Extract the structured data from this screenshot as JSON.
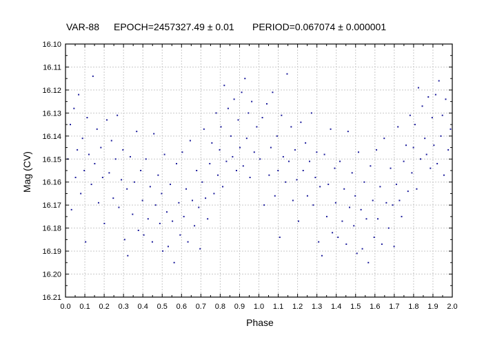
{
  "chart_data": {
    "type": "scatter",
    "title_parts": {
      "star": "VAR-88",
      "epoch": "EPOCH=2457327.49 ± 0.01",
      "period": "PERIOD=0.067074 ± 0.000001"
    },
    "xlabel": "Phase",
    "ylabel": "Mag (CV)",
    "xlim": [
      0.0,
      2.0
    ],
    "ylim": [
      16.21,
      16.1
    ],
    "y_inverted": true,
    "grid": true,
    "x_ticks": [
      "0.0",
      "0.1",
      "0.2",
      "0.3",
      "0.4",
      "0.5",
      "0.6",
      "0.7",
      "0.8",
      "0.9",
      "1.0",
      "1.1",
      "1.2",
      "1.3",
      "1.4",
      "1.5",
      "1.6",
      "1.7",
      "1.8",
      "1.9",
      "2.0"
    ],
    "y_ticks": [
      "16.10",
      "16.11",
      "16.12",
      "16.13",
      "16.14",
      "16.15",
      "16.16",
      "16.17",
      "16.18",
      "16.19",
      "16.20",
      "16.21"
    ],
    "point_color": "#1a1a9a",
    "series": [
      {
        "name": "",
        "points": [
          [
            0.012,
            16.15
          ],
          [
            0.025,
            16.135
          ],
          [
            0.031,
            16.172
          ],
          [
            0.044,
            16.128
          ],
          [
            0.052,
            16.158
          ],
          [
            0.061,
            16.146
          ],
          [
            0.068,
            16.122
          ],
          [
            0.079,
            16.165
          ],
          [
            0.088,
            16.141
          ],
          [
            0.097,
            16.155
          ],
          [
            0.104,
            16.186
          ],
          [
            0.112,
            16.132
          ],
          [
            0.121,
            16.148
          ],
          [
            0.134,
            16.161
          ],
          [
            0.142,
            16.114
          ],
          [
            0.151,
            16.152
          ],
          [
            0.163,
            16.137
          ],
          [
            0.171,
            16.169
          ],
          [
            0.183,
            16.145
          ],
          [
            0.192,
            16.158
          ],
          [
            0.201,
            16.178
          ],
          [
            0.214,
            16.133
          ],
          [
            0.226,
            16.156
          ],
          [
            0.238,
            16.142
          ],
          [
            0.247,
            16.167
          ],
          [
            0.259,
            16.15
          ],
          [
            0.268,
            16.131
          ],
          [
            0.276,
            16.171
          ],
          [
            0.289,
            16.159
          ],
          [
            0.297,
            16.146
          ],
          [
            0.306,
            16.185
          ],
          [
            0.318,
            16.163
          ],
          [
            0.322,
            16.192
          ],
          [
            0.335,
            16.149
          ],
          [
            0.347,
            16.174
          ],
          [
            0.356,
            16.16
          ],
          [
            0.368,
            16.138
          ],
          [
            0.377,
            16.181
          ],
          [
            0.389,
            16.155
          ],
          [
            0.398,
            16.168
          ],
          [
            0.405,
            16.183
          ],
          [
            0.416,
            16.15
          ],
          [
            0.427,
            16.176
          ],
          [
            0.438,
            16.162
          ],
          [
            0.449,
            16.186
          ],
          [
            0.457,
            16.139
          ],
          [
            0.466,
            16.17
          ],
          [
            0.479,
            16.157
          ],
          [
            0.488,
            16.178
          ],
          [
            0.497,
            16.165
          ],
          [
            0.503,
            16.19
          ],
          [
            0.512,
            16.148
          ],
          [
            0.524,
            16.173
          ],
          [
            0.531,
            16.188
          ],
          [
            0.542,
            16.161
          ],
          [
            0.553,
            16.177
          ],
          [
            0.562,
            16.195
          ],
          [
            0.574,
            16.152
          ],
          [
            0.586,
            16.169
          ],
          [
            0.593,
            16.183
          ],
          [
            0.604,
            16.147
          ],
          [
            0.612,
            16.175
          ],
          [
            0.624,
            16.163
          ],
          [
            0.633,
            16.186
          ],
          [
            0.645,
            16.142
          ],
          [
            0.656,
            16.168
          ],
          [
            0.667,
            16.179
          ],
          [
            0.678,
            16.155
          ],
          [
            0.689,
            16.171
          ],
          [
            0.696,
            16.189
          ],
          [
            0.707,
            16.16
          ],
          [
            0.716,
            16.137
          ],
          [
            0.724,
            16.167
          ],
          [
            0.735,
            16.176
          ],
          [
            0.746,
            16.152
          ],
          [
            0.757,
            16.143
          ],
          [
            0.768,
            16.165
          ],
          [
            0.779,
            16.13
          ],
          [
            0.788,
            16.157
          ],
          [
            0.797,
            16.146
          ],
          [
            0.804,
            16.136
          ],
          [
            0.813,
            16.162
          ],
          [
            0.821,
            16.118
          ],
          [
            0.832,
            16.151
          ],
          [
            0.841,
            16.128
          ],
          [
            0.855,
            16.14
          ],
          [
            0.864,
            16.149
          ],
          [
            0.872,
            16.124
          ],
          [
            0.884,
            16.155
          ],
          [
            0.893,
            16.133
          ],
          [
            0.902,
            16.145
          ],
          [
            0.911,
            16.121
          ],
          [
            0.919,
            16.153
          ],
          [
            0.928,
            16.115
          ],
          [
            0.937,
            16.141
          ],
          [
            0.946,
            16.13
          ],
          [
            0.954,
            16.158
          ],
          [
            0.963,
            16.125
          ],
          [
            0.976,
            16.147
          ],
          [
            0.989,
            16.136
          ],
          [
            1.006,
            16.15
          ],
          [
            1.018,
            16.132
          ],
          [
            1.027,
            16.17
          ],
          [
            1.041,
            16.126
          ],
          [
            1.053,
            16.157
          ],
          [
            1.062,
            16.145
          ],
          [
            1.071,
            16.121
          ],
          [
            1.083,
            16.166
          ],
          [
            1.094,
            16.14
          ],
          [
            1.099,
            16.155
          ],
          [
            1.108,
            16.184
          ],
          [
            1.117,
            16.131
          ],
          [
            1.126,
            16.149
          ],
          [
            1.138,
            16.16
          ],
          [
            1.146,
            16.113
          ],
          [
            1.155,
            16.151
          ],
          [
            1.167,
            16.136
          ],
          [
            1.176,
            16.168
          ],
          [
            1.187,
            16.146
          ],
          [
            1.196,
            16.159
          ],
          [
            1.205,
            16.177
          ],
          [
            1.217,
            16.134
          ],
          [
            1.229,
            16.155
          ],
          [
            1.241,
            16.143
          ],
          [
            1.251,
            16.166
          ],
          [
            1.262,
            16.151
          ],
          [
            1.272,
            16.13
          ],
          [
            1.281,
            16.17
          ],
          [
            1.292,
            16.158
          ],
          [
            1.299,
            16.147
          ],
          [
            1.309,
            16.186
          ],
          [
            1.316,
            16.162
          ],
          [
            1.326,
            16.192
          ],
          [
            1.339,
            16.148
          ],
          [
            1.351,
            16.175
          ],
          [
            1.359,
            16.161
          ],
          [
            1.371,
            16.137
          ],
          [
            1.38,
            16.182
          ],
          [
            1.392,
            16.154
          ],
          [
            1.397,
            16.169
          ],
          [
            1.409,
            16.184
          ],
          [
            1.419,
            16.151
          ],
          [
            1.431,
            16.177
          ],
          [
            1.441,
            16.163
          ],
          [
            1.452,
            16.187
          ],
          [
            1.461,
            16.138
          ],
          [
            1.469,
            16.171
          ],
          [
            1.482,
            16.156
          ],
          [
            1.491,
            16.179
          ],
          [
            1.498,
            16.166
          ],
          [
            1.507,
            16.191
          ],
          [
            1.515,
            16.147
          ],
          [
            1.528,
            16.172
          ],
          [
            1.535,
            16.189
          ],
          [
            1.545,
            16.16
          ],
          [
            1.556,
            16.176
          ],
          [
            1.566,
            16.195
          ],
          [
            1.577,
            16.153
          ],
          [
            1.589,
            16.168
          ],
          [
            1.596,
            16.184
          ],
          [
            1.608,
            16.146
          ],
          [
            1.615,
            16.176
          ],
          [
            1.627,
            16.162
          ],
          [
            1.636,
            16.187
          ],
          [
            1.648,
            16.141
          ],
          [
            1.659,
            16.169
          ],
          [
            1.671,
            16.18
          ],
          [
            1.681,
            16.154
          ],
          [
            1.692,
            16.17
          ],
          [
            1.699,
            16.188
          ],
          [
            1.711,
            16.161
          ],
          [
            1.719,
            16.136
          ],
          [
            1.727,
            16.168
          ],
          [
            1.738,
            16.175
          ],
          [
            1.749,
            16.151
          ],
          [
            1.761,
            16.144
          ],
          [
            1.771,
            16.164
          ],
          [
            1.782,
            16.131
          ],
          [
            1.791,
            16.156
          ],
          [
            1.799,
            16.145
          ],
          [
            1.807,
            16.135
          ],
          [
            1.816,
            16.163
          ],
          [
            1.825,
            16.119
          ],
          [
            1.836,
            16.15
          ],
          [
            1.845,
            16.127
          ],
          [
            1.858,
            16.141
          ],
          [
            1.867,
            16.148
          ],
          [
            1.876,
            16.123
          ],
          [
            1.887,
            16.154
          ],
          [
            1.896,
            16.132
          ],
          [
            1.905,
            16.144
          ],
          [
            1.914,
            16.122
          ],
          [
            1.922,
            16.152
          ],
          [
            1.931,
            16.116
          ],
          [
            1.941,
            16.14
          ],
          [
            1.949,
            16.131
          ],
          [
            1.957,
            16.157
          ],
          [
            1.966,
            16.124
          ],
          [
            1.979,
            16.146
          ],
          [
            1.991,
            16.137
          ]
        ]
      }
    ]
  }
}
